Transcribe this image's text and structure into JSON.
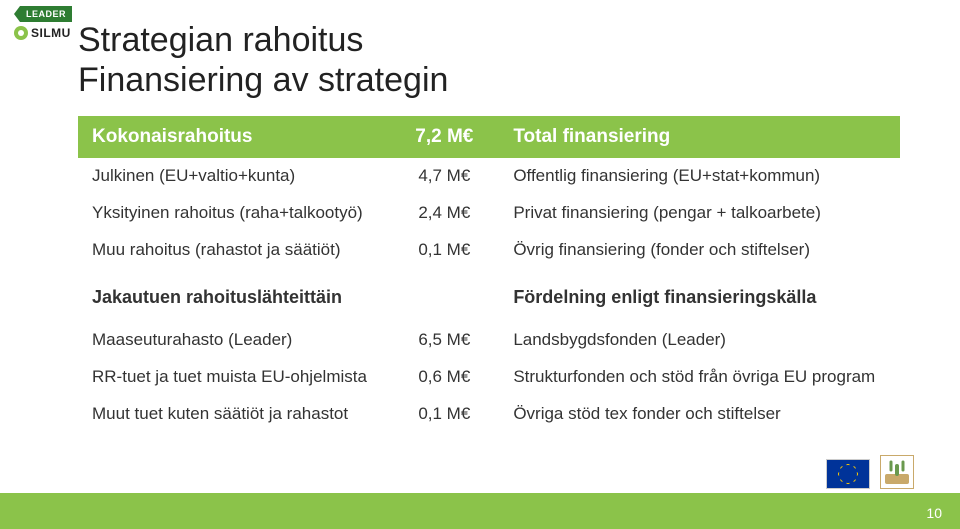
{
  "logos": {
    "leader_label": "LEADER",
    "silmu_label": "SILMU"
  },
  "title_line1": "Strategian rahoitus",
  "title_line2": "Finansiering av strategin",
  "table": {
    "header": {
      "left": "Kokonaisrahoitus",
      "amount": "7,2 M€",
      "right": "Total finansiering"
    },
    "rows_top": [
      {
        "left": "Julkinen (EU+valtio+kunta)",
        "amount": "4,7 M€",
        "right": "Offentlig finansiering (EU+stat+kommun)"
      },
      {
        "left": "Yksityinen rahoitus (raha+talkootyö)",
        "amount": "2,4 M€",
        "right": "Privat finansiering (pengar + talkoarbete)"
      },
      {
        "left": "Muu rahoitus (rahastot ja säätiöt)",
        "amount": "0,1 M€",
        "right": "Övrig finansiering (fonder och stiftelser)"
      }
    ],
    "section": {
      "left": "Jakautuen rahoituslähteittäin",
      "right": "Fördelning enligt finansieringskälla"
    },
    "rows_bottom": [
      {
        "left": "Maaseuturahasto (Leader)",
        "amount": "6,5 M€",
        "right": "Landsbygdsfonden (Leader)"
      },
      {
        "left": "RR-tuet ja tuet muista EU-ohjelmista",
        "amount": "0,6 M€",
        "right": "Strukturfonden och stöd från övriga EU program"
      },
      {
        "left": "Muut tuet kuten säätiöt ja rahastot",
        "amount": "0,1 M€",
        "right": "Övriga stöd tex fonder och stiftelser"
      }
    ]
  },
  "page_number": "10",
  "colors": {
    "accent": "#8bc34a",
    "header_text": "#ffffff",
    "body_text": "#333333",
    "leader_green": "#2e7d32"
  }
}
